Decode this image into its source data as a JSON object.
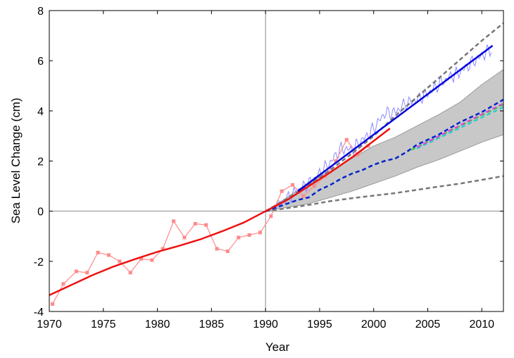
{
  "chart_data": {
    "type": "line",
    "title": "",
    "xlabel": "Year",
    "ylabel": "Sea Level Change (cm)",
    "xlim": [
      1970,
      2012
    ],
    "ylim": [
      -4,
      8
    ],
    "xticks": [
      1970,
      1975,
      1980,
      1985,
      1990,
      1995,
      2000,
      2005,
      2010
    ],
    "yticks": [
      -4,
      -2,
      0,
      2,
      4,
      6,
      8
    ],
    "reference_lines": {
      "x": 1990,
      "y": 0
    },
    "colors": {
      "tide_gauge": "#ff8a8a",
      "tide_gauge_fit": "#ee1111",
      "satellite_raw": "#8a8aff",
      "satellite_trend": "#0000dd",
      "projection_central": "#0022cc",
      "projection_bounds": "#777777",
      "projection_band": "#c8c8c8",
      "model_magenta": "#dd44dd",
      "model_cyan": "#22cccc",
      "model_green": "#33cc33"
    },
    "series": [
      {
        "name": "tide-gauge-annual",
        "style": "thin-line-square-markers",
        "x": [
          1970.3,
          1971.3,
          1972.5,
          1973.5,
          1974.5,
          1975.5,
          1976.5,
          1977.5,
          1978.5,
          1979.5,
          1980.5,
          1981.5,
          1982.5,
          1983.5,
          1984.5,
          1985.5,
          1986.5,
          1987.5,
          1988.5,
          1989.5,
          1990.5,
          1991.5,
          1992.5,
          1993.5,
          1994.5,
          1995.5,
          1996.5,
          1997.5,
          1998.5,
          1999.5
        ],
        "y": [
          -3.7,
          -2.9,
          -2.4,
          -2.45,
          -1.65,
          -1.75,
          -2.0,
          -2.45,
          -1.9,
          -1.95,
          -1.5,
          -0.4,
          -1.05,
          -0.5,
          -0.55,
          -1.5,
          -1.6,
          -1.05,
          -0.95,
          -0.85,
          -0.2,
          0.8,
          1.05,
          0.6,
          1.0,
          1.4,
          2.0,
          2.85,
          2.25,
          2.6
        ]
      },
      {
        "name": "tide-gauge-smoothed",
        "style": "thick-line",
        "x": [
          1970,
          1972,
          1974,
          1976,
          1978,
          1980,
          1982,
          1984,
          1986,
          1988,
          1990,
          1992,
          1994,
          1996,
          1998,
          2000,
          2001.5
        ],
        "y": [
          -3.35,
          -2.95,
          -2.55,
          -2.2,
          -1.9,
          -1.62,
          -1.38,
          -1.12,
          -0.8,
          -0.45,
          0.0,
          0.45,
          1.0,
          1.55,
          2.15,
          2.8,
          3.3
        ]
      },
      {
        "name": "satellite-altimetry",
        "style": "thin-noisy-line",
        "x": [
          1991,
          1992,
          1993,
          1994,
          1995,
          1996,
          1997,
          1998,
          1999,
          2000,
          2001,
          2002,
          2003,
          2004,
          2005,
          2006,
          2007,
          2008,
          2009,
          2010,
          2011
        ],
        "y": [
          0.2,
          0.5,
          0.85,
          1.1,
          1.5,
          1.95,
          2.5,
          2.45,
          2.85,
          3.3,
          3.9,
          3.95,
          4.3,
          4.45,
          4.7,
          5.05,
          5.35,
          5.55,
          5.9,
          6.2,
          6.5
        ]
      },
      {
        "name": "satellite-trend",
        "style": "thick-line",
        "x": [
          1993,
          2011
        ],
        "y": [
          0.8,
          6.6
        ]
      },
      {
        "name": "projection-upper",
        "style": "dashed",
        "x": [
          1990,
          1992,
          1994,
          1996,
          1998,
          2000,
          2002,
          2004,
          2006,
          2008,
          2010,
          2012
        ],
        "y": [
          0.0,
          0.5,
          1.05,
          1.65,
          2.3,
          3.0,
          3.8,
          4.55,
          5.3,
          6.05,
          6.8,
          7.5
        ]
      },
      {
        "name": "projection-central",
        "style": "dashed",
        "x": [
          1990,
          1992,
          1993,
          1994,
          1995,
          1996,
          1997,
          1998,
          1999,
          2000,
          2001,
          2002,
          2003,
          2004,
          2005,
          2006,
          2007,
          2008,
          2009,
          2010,
          2011,
          2012
        ],
        "y": [
          0.0,
          0.3,
          0.45,
          0.55,
          0.85,
          1.05,
          1.3,
          1.5,
          1.65,
          1.85,
          2.0,
          2.1,
          2.35,
          2.65,
          2.85,
          3.05,
          3.3,
          3.55,
          3.75,
          3.95,
          4.2,
          4.45
        ]
      },
      {
        "name": "projection-lower",
        "style": "dashed",
        "x": [
          1990,
          1992,
          1994,
          1996,
          1998,
          2000,
          2002,
          2004,
          2006,
          2008,
          2010,
          2012
        ],
        "y": [
          0.0,
          0.12,
          0.25,
          0.4,
          0.52,
          0.62,
          0.72,
          0.85,
          0.98,
          1.1,
          1.25,
          1.4
        ]
      },
      {
        "name": "projection-band-upper",
        "style": "band",
        "x": [
          1990,
          1992,
          1994,
          1996,
          1998,
          2000,
          2002,
          2004,
          2006,
          2008,
          2010,
          2012
        ],
        "y": [
          0.0,
          0.55,
          1.15,
          1.6,
          2.1,
          2.6,
          2.95,
          3.4,
          3.85,
          4.35,
          5.05,
          5.65
        ]
      },
      {
        "name": "projection-band-lower",
        "style": "band",
        "x": [
          1990,
          1992,
          1994,
          1996,
          1998,
          2000,
          2002,
          2004,
          2006,
          2008,
          2010,
          2012
        ],
        "y": [
          0.0,
          0.15,
          0.3,
          0.55,
          0.8,
          1.1,
          1.4,
          1.75,
          2.05,
          2.4,
          2.75,
          3.05
        ]
      },
      {
        "name": "model-magenta",
        "style": "dashed",
        "x": [
          2004,
          2012
        ],
        "y": [
          2.55,
          4.3
        ]
      },
      {
        "name": "model-cyan",
        "style": "dashed",
        "x": [
          2004,
          2012
        ],
        "y": [
          2.5,
          4.15
        ]
      },
      {
        "name": "model-green",
        "style": "dashed",
        "x": [
          2003.5,
          2012
        ],
        "y": [
          2.45,
          4.25
        ]
      }
    ]
  }
}
